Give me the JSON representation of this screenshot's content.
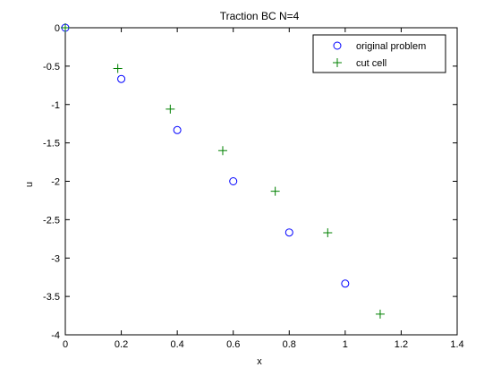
{
  "chart_data": {
    "type": "scatter",
    "title": "Traction BC N=4",
    "xlabel": "x",
    "ylabel": "u",
    "xlim": [
      0,
      1.4
    ],
    "ylim": [
      -4,
      0
    ],
    "xticks": [
      0,
      0.2,
      0.4,
      0.6,
      0.8,
      1,
      1.2,
      1.4
    ],
    "yticks": [
      0,
      -0.5,
      -1,
      -1.5,
      -2,
      -2.5,
      -3,
      -3.5,
      -4
    ],
    "xtick_labels": [
      "0",
      "0.2",
      "0.4",
      "0.6",
      "0.8",
      "1",
      "1.2",
      "1.4"
    ],
    "ytick_labels": [
      "0",
      "-0.5",
      "-1",
      "-1.5",
      "-2",
      "-2.5",
      "-3",
      "-3.5",
      "-4"
    ],
    "grid": false,
    "legend_position": "top-right",
    "series": [
      {
        "name": "original problem",
        "marker": "circle",
        "color": "#0000ff",
        "x": [
          0,
          0.2,
          0.4,
          0.6,
          0.8,
          1.0
        ],
        "y": [
          0,
          -0.667,
          -1.333,
          -2.0,
          -2.667,
          -3.333
        ]
      },
      {
        "name": "cut cell",
        "marker": "plus",
        "color": "#008000",
        "x": [
          0,
          0.1875,
          0.375,
          0.5625,
          0.75,
          0.9375,
          1.125
        ],
        "y": [
          0,
          -0.53,
          -1.06,
          -1.6,
          -2.13,
          -2.67,
          -3.73
        ]
      }
    ]
  }
}
